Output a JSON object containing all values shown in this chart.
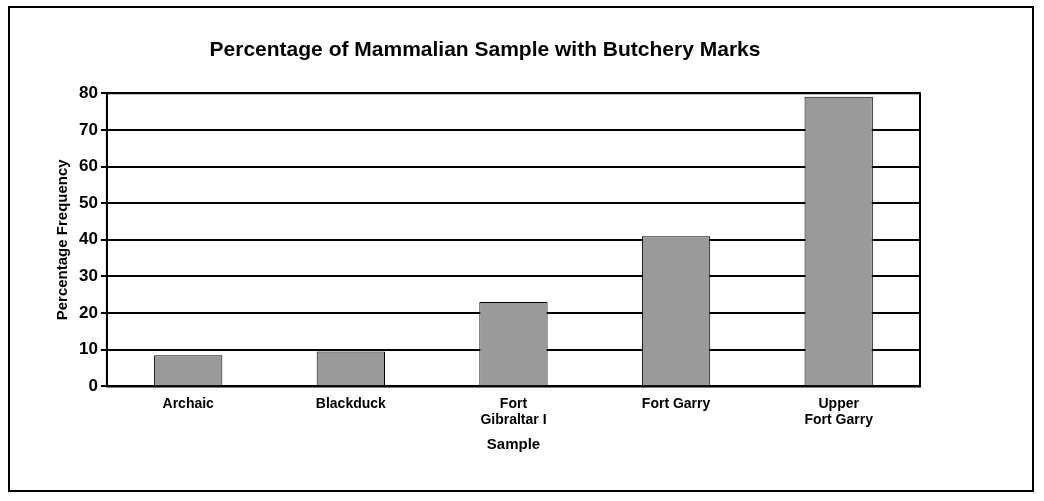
{
  "chart_data": {
    "type": "bar",
    "title": "Percentage of Mammalian Sample with Butchery Marks",
    "xlabel": "Sample",
    "ylabel": "Percentage Frequency",
    "categories": [
      "Archaic",
      "Blackduck",
      "Fort Gibraltar I",
      "Fort Garry",
      "Upper Fort Garry"
    ],
    "values": [
      8.5,
      9.5,
      23,
      41,
      79
    ],
    "color": "#9a9a9a",
    "ylim": [
      0,
      80
    ],
    "yticks": [
      0,
      10,
      20,
      30,
      40,
      50,
      60,
      70,
      80
    ],
    "grid": "y",
    "legend": false
  }
}
